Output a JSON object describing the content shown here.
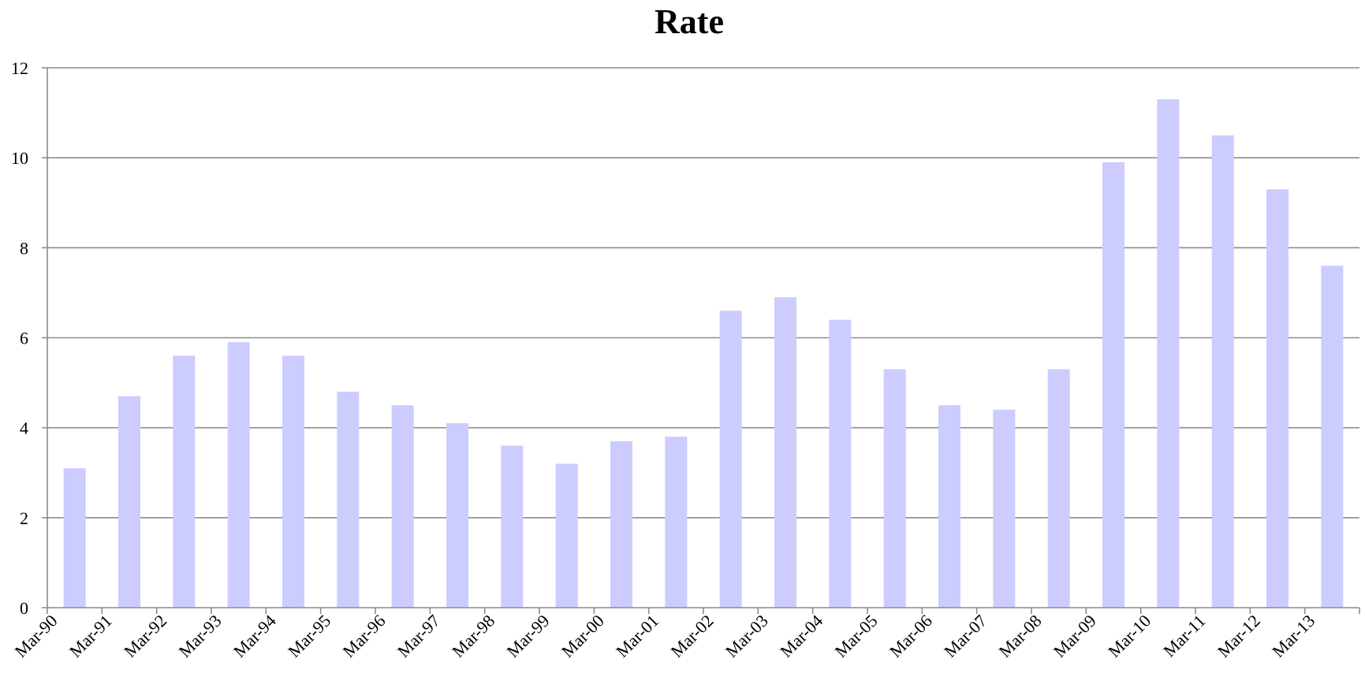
{
  "chart_data": {
    "type": "bar",
    "title": "Rate",
    "xlabel": "",
    "ylabel": "",
    "categories": [
      "Mar-90",
      "Mar-91",
      "Mar-92",
      "Mar-93",
      "Mar-94",
      "Mar-95",
      "Mar-96",
      "Mar-97",
      "Mar-98",
      "Mar-99",
      "Mar-00",
      "Mar-01",
      "Mar-02",
      "Mar-03",
      "Mar-04",
      "Mar-05",
      "Mar-06",
      "Mar-07",
      "Mar-08",
      "Mar-09",
      "Mar-10",
      "Mar-11",
      "Mar-12",
      "Mar-13"
    ],
    "values": [
      3.1,
      4.7,
      5.6,
      5.9,
      5.6,
      4.8,
      4.5,
      4.1,
      3.6,
      3.2,
      3.7,
      3.8,
      6.6,
      6.9,
      6.4,
      5.3,
      4.5,
      4.4,
      5.3,
      9.9,
      11.3,
      10.5,
      9.3,
      7.6
    ],
    "ylim": [
      0,
      12
    ],
    "yticks": [
      0,
      2,
      4,
      6,
      8,
      10,
      12
    ],
    "grid": true,
    "legend": "none",
    "bar_color": "#ccccff",
    "grid_color": "#8c8c8c"
  }
}
